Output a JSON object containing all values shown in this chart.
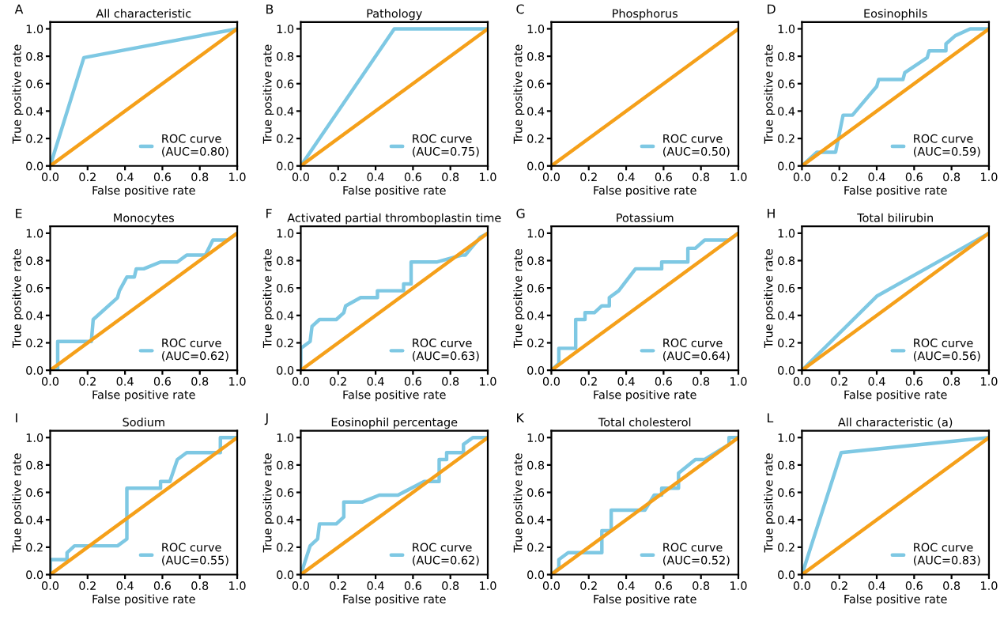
{
  "chart_data": [
    {
      "type": "line",
      "title": "All characteristic",
      "annotations": [
        "A"
      ],
      "xlabel": "False positive rate",
      "ylabel": "True positive rate",
      "xlim": [
        0,
        1
      ],
      "ylim": [
        0,
        1.05
      ],
      "xticks": [
        {
          "value": 0,
          "label": "0.0"
        },
        {
          "value": 0.2,
          "label": "0.2"
        },
        {
          "value": 0.4,
          "label": "0.4"
        },
        {
          "value": 0.6,
          "label": "0.6"
        },
        {
          "value": 0.8,
          "label": "0.8"
        },
        {
          "value": 1,
          "label": "1.0"
        }
      ],
      "yticks": [
        {
          "value": 0,
          "label": "0.0"
        },
        {
          "value": 0.2,
          "label": "0.2"
        },
        {
          "value": 0.4,
          "label": "0.4"
        },
        {
          "value": 0.6,
          "label": "0.6"
        },
        {
          "value": 0.8,
          "label": "0.8"
        },
        {
          "value": 1,
          "label": "1.0"
        }
      ],
      "legend": "bottom right",
      "series": [
        {
          "name": "ROC curve\n(AUC=0.80)",
          "color": "#7ec8e3",
          "x": [
            0,
            0.18,
            1
          ],
          "values": [
            0,
            0.79,
            1
          ]
        },
        {
          "color": "#f5a01a",
          "x": [
            0,
            1
          ],
          "values": [
            0,
            1
          ]
        }
      ]
    },
    {
      "type": "line",
      "title": "Pathology",
      "annotations": [
        "B"
      ],
      "xlabel": "False positive rate",
      "ylabel": "True positive rate",
      "xlim": [
        0,
        1
      ],
      "ylim": [
        0,
        1.05
      ],
      "xticks": [
        {
          "value": 0,
          "label": "0.0"
        },
        {
          "value": 0.2,
          "label": "0.2"
        },
        {
          "value": 0.4,
          "label": "0.4"
        },
        {
          "value": 0.6,
          "label": "0.6"
        },
        {
          "value": 0.8,
          "label": "0.8"
        },
        {
          "value": 1,
          "label": "1.0"
        }
      ],
      "yticks": [
        {
          "value": 0,
          "label": "0.0"
        },
        {
          "value": 0.2,
          "label": "0.2"
        },
        {
          "value": 0.4,
          "label": "0.4"
        },
        {
          "value": 0.6,
          "label": "0.6"
        },
        {
          "value": 0.8,
          "label": "0.8"
        },
        {
          "value": 1,
          "label": "1.0"
        }
      ],
      "legend": "bottom right",
      "series": [
        {
          "name": "ROC curve\n(AUC=0.75)",
          "color": "#7ec8e3",
          "x": [
            0,
            0.5,
            1
          ],
          "values": [
            0,
            1,
            1
          ]
        },
        {
          "color": "#f5a01a",
          "x": [
            0,
            1
          ],
          "values": [
            0,
            1
          ]
        }
      ]
    },
    {
      "type": "line",
      "title": "Phosphorus",
      "annotations": [
        "C"
      ],
      "xlabel": "False positive rate",
      "ylabel": "True positive rate",
      "xlim": [
        0,
        1
      ],
      "ylim": [
        0,
        1.05
      ],
      "xticks": [
        {
          "value": 0,
          "label": "0.0"
        },
        {
          "value": 0.2,
          "label": "0.2"
        },
        {
          "value": 0.4,
          "label": "0.4"
        },
        {
          "value": 0.6,
          "label": "0.6"
        },
        {
          "value": 0.8,
          "label": "0.8"
        },
        {
          "value": 1,
          "label": "1.0"
        }
      ],
      "yticks": [
        {
          "value": 0,
          "label": "0.0"
        },
        {
          "value": 0.2,
          "label": "0.2"
        },
        {
          "value": 0.4,
          "label": "0.4"
        },
        {
          "value": 0.6,
          "label": "0.6"
        },
        {
          "value": 0.8,
          "label": "0.8"
        },
        {
          "value": 1,
          "label": "1.0"
        }
      ],
      "legend": "bottom right",
      "series": [
        {
          "name": "ROC curve\n(AUC=0.50)",
          "color": "#7ec8e3"
        },
        {
          "color": "#f5a01a",
          "x": [
            0,
            1
          ],
          "values": [
            0,
            1
          ]
        }
      ]
    },
    {
      "type": "line",
      "title": "Eosinophils",
      "annotations": [
        "D"
      ],
      "xlabel": "False positive rate",
      "ylabel": "True positive rate",
      "xlim": [
        0,
        1
      ],
      "ylim": [
        0,
        1.05
      ],
      "xticks": [
        {
          "value": 0,
          "label": "0.0"
        },
        {
          "value": 0.2,
          "label": "0.2"
        },
        {
          "value": 0.4,
          "label": "0.4"
        },
        {
          "value": 0.6,
          "label": "0.6"
        },
        {
          "value": 0.8,
          "label": "0.8"
        },
        {
          "value": 1,
          "label": "1.0"
        }
      ],
      "yticks": [
        {
          "value": 0,
          "label": "0.0"
        },
        {
          "value": 0.2,
          "label": "0.2"
        },
        {
          "value": 0.4,
          "label": "0.4"
        },
        {
          "value": 0.6,
          "label": "0.6"
        },
        {
          "value": 0.8,
          "label": "0.8"
        },
        {
          "value": 1,
          "label": "1.0"
        }
      ],
      "legend": "bottom right",
      "series": [
        {
          "name": "ROC curve\n(AUC=0.59)",
          "color": "#7ec8e3",
          "x": [
            0,
            0.08,
            0.18,
            0.22,
            0.27,
            0.4,
            0.41,
            0.54,
            0.55,
            0.67,
            0.68,
            0.77,
            0.77,
            0.82,
            0.9,
            1
          ],
          "values": [
            0,
            0.1,
            0.1,
            0.37,
            0.37,
            0.58,
            0.63,
            0.63,
            0.68,
            0.79,
            0.84,
            0.84,
            0.89,
            0.95,
            1,
            1
          ]
        },
        {
          "color": "#f5a01a",
          "x": [
            0,
            1
          ],
          "values": [
            0,
            1
          ]
        }
      ]
    },
    {
      "type": "line",
      "title": "Monocytes",
      "annotations": [
        "E"
      ],
      "xlabel": "False positive rate",
      "ylabel": "True positive rate",
      "xlim": [
        0,
        1
      ],
      "ylim": [
        0,
        1.05
      ],
      "xticks": [
        {
          "value": 0,
          "label": "0.0"
        },
        {
          "value": 0.2,
          "label": "0.2"
        },
        {
          "value": 0.4,
          "label": "0.4"
        },
        {
          "value": 0.6,
          "label": "0.6"
        },
        {
          "value": 0.8,
          "label": "0.8"
        },
        {
          "value": 1,
          "label": "1.0"
        }
      ],
      "yticks": [
        {
          "value": 0,
          "label": "0.0"
        },
        {
          "value": 0.2,
          "label": "0.2"
        },
        {
          "value": 0.4,
          "label": "0.4"
        },
        {
          "value": 0.6,
          "label": "0.6"
        },
        {
          "value": 0.8,
          "label": "0.8"
        },
        {
          "value": 1,
          "label": "1.0"
        }
      ],
      "legend": "bottom right",
      "series": [
        {
          "name": "ROC curve\n(AUC=0.62)",
          "color": "#7ec8e3",
          "x": [
            0,
            0.04,
            0.04,
            0.22,
            0.23,
            0.36,
            0.37,
            0.41,
            0.45,
            0.46,
            0.5,
            0.59,
            0.68,
            0.73,
            0.83,
            0.87,
            0.95,
            1
          ],
          "values": [
            0,
            0,
            0.21,
            0.21,
            0.37,
            0.53,
            0.58,
            0.68,
            0.68,
            0.74,
            0.74,
            0.79,
            0.79,
            0.84,
            0.84,
            0.95,
            0.95,
            1
          ]
        },
        {
          "color": "#f5a01a",
          "x": [
            0,
            1
          ],
          "values": [
            0,
            1
          ]
        }
      ]
    },
    {
      "type": "line",
      "title": "Activated partial thromboplastin time",
      "annotations": [
        "F"
      ],
      "xlabel": "False positive rate",
      "ylabel": "True positive rate",
      "xlim": [
        0,
        1
      ],
      "ylim": [
        0,
        1.05
      ],
      "xticks": [
        {
          "value": 0,
          "label": "0.0"
        },
        {
          "value": 0.2,
          "label": "0.2"
        },
        {
          "value": 0.4,
          "label": "0.4"
        },
        {
          "value": 0.6,
          "label": "0.6"
        },
        {
          "value": 0.8,
          "label": "0.8"
        },
        {
          "value": 1,
          "label": "1.0"
        }
      ],
      "yticks": [
        {
          "value": 0,
          "label": "0.0"
        },
        {
          "value": 0.2,
          "label": "0.2"
        },
        {
          "value": 0.4,
          "label": "0.4"
        },
        {
          "value": 0.6,
          "label": "0.6"
        },
        {
          "value": 0.8,
          "label": "0.8"
        },
        {
          "value": 1,
          "label": "1.0"
        }
      ],
      "legend": "bottom right",
      "series": [
        {
          "name": "ROC curve\n(AUC=0.63)",
          "color": "#7ec8e3",
          "x": [
            0,
            0,
            0.05,
            0.06,
            0.1,
            0.19,
            0.23,
            0.24,
            0.32,
            0.41,
            0.41,
            0.55,
            0.55,
            0.59,
            0.59,
            0.73,
            0.86,
            0.88,
            0.91,
            0.96,
            1
          ],
          "values": [
            0,
            0.16,
            0.21,
            0.32,
            0.37,
            0.37,
            0.42,
            0.47,
            0.53,
            0.53,
            0.58,
            0.58,
            0.63,
            0.63,
            0.79,
            0.79,
            0.84,
            0.84,
            0.89,
            0.97,
            1
          ]
        },
        {
          "color": "#f5a01a",
          "x": [
            0,
            1
          ],
          "values": [
            0,
            1
          ]
        }
      ]
    },
    {
      "type": "line",
      "title": "Potassium",
      "annotations": [
        "G"
      ],
      "xlabel": "False positive rate",
      "ylabel": "True positive rate",
      "xlim": [
        0,
        1
      ],
      "ylim": [
        0,
        1.05
      ],
      "xticks": [
        {
          "value": 0,
          "label": "0.0"
        },
        {
          "value": 0.2,
          "label": "0.2"
        },
        {
          "value": 0.4,
          "label": "0.4"
        },
        {
          "value": 0.6,
          "label": "0.6"
        },
        {
          "value": 0.8,
          "label": "0.8"
        },
        {
          "value": 1,
          "label": "1.0"
        }
      ],
      "yticks": [
        {
          "value": 0,
          "label": "0.0"
        },
        {
          "value": 0.2,
          "label": "0.2"
        },
        {
          "value": 0.4,
          "label": "0.4"
        },
        {
          "value": 0.6,
          "label": "0.6"
        },
        {
          "value": 0.8,
          "label": "0.8"
        },
        {
          "value": 1,
          "label": "1.0"
        }
      ],
      "legend": "bottom right",
      "series": [
        {
          "name": "ROC curve\n(AUC=0.64)",
          "color": "#7ec8e3",
          "x": [
            0,
            0.04,
            0.04,
            0.13,
            0.13,
            0.18,
            0.18,
            0.23,
            0.27,
            0.31,
            0.31,
            0.36,
            0.45,
            0.59,
            0.59,
            0.73,
            0.73,
            0.77,
            0.82,
            0.95,
            1
          ],
          "values": [
            0,
            0.05,
            0.16,
            0.16,
            0.37,
            0.37,
            0.42,
            0.42,
            0.47,
            0.47,
            0.53,
            0.58,
            0.74,
            0.74,
            0.79,
            0.79,
            0.89,
            0.89,
            0.95,
            0.95,
            1
          ]
        },
        {
          "color": "#f5a01a",
          "x": [
            0,
            1
          ],
          "values": [
            0,
            1
          ]
        }
      ]
    },
    {
      "type": "line",
      "title": "Total bilirubin",
      "annotations": [
        "H"
      ],
      "xlabel": "False positive rate",
      "ylabel": "True positive rate",
      "xlim": [
        0,
        1
      ],
      "ylim": [
        0,
        1.05
      ],
      "xticks": [
        {
          "value": 0,
          "label": "0.0"
        },
        {
          "value": 0.2,
          "label": "0.2"
        },
        {
          "value": 0.4,
          "label": "0.4"
        },
        {
          "value": 0.6,
          "label": "0.6"
        },
        {
          "value": 0.8,
          "label": "0.8"
        },
        {
          "value": 1,
          "label": "1.0"
        }
      ],
      "yticks": [
        {
          "value": 0,
          "label": "0.0"
        },
        {
          "value": 0.2,
          "label": "0.2"
        },
        {
          "value": 0.4,
          "label": "0.4"
        },
        {
          "value": 0.6,
          "label": "0.6"
        },
        {
          "value": 0.8,
          "label": "0.8"
        },
        {
          "value": 1,
          "label": "1.0"
        }
      ],
      "legend": "bottom right",
      "series": [
        {
          "name": "ROC curve\n(AUC=0.56)",
          "color": "#7ec8e3",
          "x": [
            0,
            0.4,
            1
          ],
          "values": [
            0,
            0.54,
            1
          ]
        },
        {
          "color": "#f5a01a",
          "x": [
            0,
            1
          ],
          "values": [
            0,
            1
          ]
        }
      ]
    },
    {
      "type": "line",
      "title": "Sodium",
      "annotations": [
        "I"
      ],
      "xlabel": "False positive rate",
      "ylabel": "True positive rate",
      "xlim": [
        0,
        1
      ],
      "ylim": [
        0,
        1.05
      ],
      "xticks": [
        {
          "value": 0,
          "label": "0.0"
        },
        {
          "value": 0.2,
          "label": "0.2"
        },
        {
          "value": 0.4,
          "label": "0.4"
        },
        {
          "value": 0.6,
          "label": "0.6"
        },
        {
          "value": 0.8,
          "label": "0.8"
        },
        {
          "value": 1,
          "label": "1.0"
        }
      ],
      "yticks": [
        {
          "value": 0,
          "label": "0.0"
        },
        {
          "value": 0.2,
          "label": "0.2"
        },
        {
          "value": 0.4,
          "label": "0.4"
        },
        {
          "value": 0.6,
          "label": "0.6"
        },
        {
          "value": 0.8,
          "label": "0.8"
        },
        {
          "value": 1,
          "label": "1.0"
        }
      ],
      "legend": "bottom right",
      "series": [
        {
          "name": "ROC curve\n(AUC=0.55)",
          "color": "#7ec8e3",
          "x": [
            0,
            0,
            0.09,
            0.09,
            0.13,
            0.36,
            0.41,
            0.41,
            0.59,
            0.59,
            0.64,
            0.68,
            0.73,
            0.91,
            0.91,
            1
          ],
          "values": [
            0,
            0.11,
            0.11,
            0.16,
            0.21,
            0.21,
            0.26,
            0.63,
            0.63,
            0.68,
            0.68,
            0.84,
            0.89,
            0.89,
            1,
            1
          ]
        },
        {
          "color": "#f5a01a",
          "x": [
            0,
            1
          ],
          "values": [
            0,
            1
          ]
        }
      ]
    },
    {
      "type": "line",
      "title": "Eosinophil percentage",
      "annotations": [
        "J"
      ],
      "xlabel": "False positive rate",
      "ylabel": "True positive rate",
      "xlim": [
        0,
        1
      ],
      "ylim": [
        0,
        1.05
      ],
      "xticks": [
        {
          "value": 0,
          "label": "0.0"
        },
        {
          "value": 0.2,
          "label": "0.2"
        },
        {
          "value": 0.4,
          "label": "0.4"
        },
        {
          "value": 0.6,
          "label": "0.6"
        },
        {
          "value": 0.8,
          "label": "0.8"
        },
        {
          "value": 1,
          "label": "1.0"
        }
      ],
      "yticks": [
        {
          "value": 0,
          "label": "0.0"
        },
        {
          "value": 0.2,
          "label": "0.2"
        },
        {
          "value": 0.4,
          "label": "0.4"
        },
        {
          "value": 0.6,
          "label": "0.6"
        },
        {
          "value": 0.8,
          "label": "0.8"
        },
        {
          "value": 1,
          "label": "1.0"
        }
      ],
      "legend": "bottom right",
      "series": [
        {
          "name": "ROC curve\n(AUC=0.62)",
          "color": "#7ec8e3",
          "x": [
            0,
            0.05,
            0.09,
            0.1,
            0.19,
            0.23,
            0.23,
            0.33,
            0.42,
            0.52,
            0.66,
            0.74,
            0.74,
            0.78,
            0.78,
            0.87,
            0.87,
            0.92,
            1
          ],
          "values": [
            0,
            0.21,
            0.26,
            0.37,
            0.37,
            0.42,
            0.53,
            0.53,
            0.58,
            0.58,
            0.68,
            0.68,
            0.84,
            0.84,
            0.89,
            0.89,
            0.95,
            1,
            1
          ]
        },
        {
          "color": "#f5a01a",
          "x": [
            0,
            1
          ],
          "values": [
            0,
            1
          ]
        }
      ]
    },
    {
      "type": "line",
      "title": "Total cholesterol",
      "annotations": [
        "K"
      ],
      "xlabel": "False positive rate",
      "ylabel": "True positive rate",
      "xlim": [
        0,
        1
      ],
      "ylim": [
        0,
        1.05
      ],
      "xticks": [
        {
          "value": 0,
          "label": "0.0"
        },
        {
          "value": 0.2,
          "label": "0.2"
        },
        {
          "value": 0.4,
          "label": "0.4"
        },
        {
          "value": 0.6,
          "label": "0.6"
        },
        {
          "value": 0.8,
          "label": "0.8"
        },
        {
          "value": 1,
          "label": "1.0"
        }
      ],
      "yticks": [
        {
          "value": 0,
          "label": "0.0"
        },
        {
          "value": 0.2,
          "label": "0.2"
        },
        {
          "value": 0.4,
          "label": "0.4"
        },
        {
          "value": 0.6,
          "label": "0.6"
        },
        {
          "value": 0.8,
          "label": "0.8"
        },
        {
          "value": 1,
          "label": "1.0"
        }
      ],
      "legend": "bottom right",
      "series": [
        {
          "name": "ROC curve\n(AUC=0.52)",
          "color": "#7ec8e3",
          "x": [
            0,
            0.04,
            0.04,
            0.09,
            0.27,
            0.27,
            0.32,
            0.32,
            0.5,
            0.55,
            0.59,
            0.59,
            0.68,
            0.68,
            0.77,
            0.82,
            0.95,
            0.95,
            1
          ],
          "values": [
            0,
            0.05,
            0.11,
            0.16,
            0.16,
            0.32,
            0.32,
            0.47,
            0.47,
            0.58,
            0.58,
            0.63,
            0.63,
            0.74,
            0.84,
            0.84,
            0.95,
            1,
            1
          ]
        },
        {
          "color": "#f5a01a",
          "x": [
            0,
            1
          ],
          "values": [
            0,
            1
          ]
        }
      ]
    },
    {
      "type": "line",
      "title": "All characteristic (a)",
      "annotations": [
        "L"
      ],
      "xlabel": "False positive rate",
      "ylabel": "True positive rate",
      "xlim": [
        0,
        1
      ],
      "ylim": [
        0,
        1.05
      ],
      "xticks": [
        {
          "value": 0,
          "label": "0.0"
        },
        {
          "value": 0.2,
          "label": "0.2"
        },
        {
          "value": 0.4,
          "label": "0.4"
        },
        {
          "value": 0.6,
          "label": "0.6"
        },
        {
          "value": 0.8,
          "label": "0.8"
        },
        {
          "value": 1,
          "label": "1.0"
        }
      ],
      "yticks": [
        {
          "value": 0,
          "label": "0.0"
        },
        {
          "value": 0.2,
          "label": "0.2"
        },
        {
          "value": 0.4,
          "label": "0.4"
        },
        {
          "value": 0.6,
          "label": "0.6"
        },
        {
          "value": 0.8,
          "label": "0.8"
        },
        {
          "value": 1,
          "label": "1.0"
        }
      ],
      "legend": "bottom right",
      "series": [
        {
          "name": "ROC curve\n(AUC=0.83)",
          "color": "#7ec8e3",
          "x": [
            0,
            0.21,
            1
          ],
          "values": [
            0,
            0.89,
            1
          ]
        },
        {
          "color": "#f5a01a",
          "x": [
            0,
            1
          ],
          "values": [
            0,
            1
          ]
        }
      ]
    }
  ]
}
